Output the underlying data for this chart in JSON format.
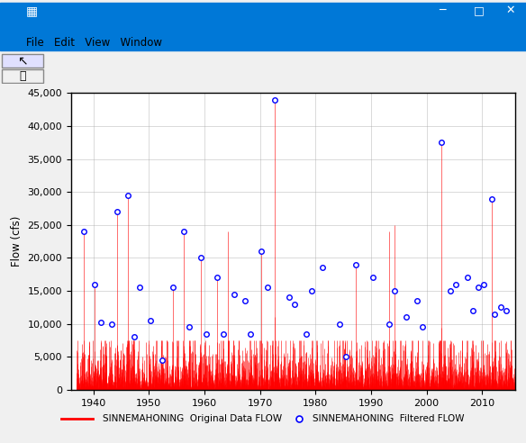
{
  "title": "",
  "xlabel": "",
  "ylabel": "Flow (cfs)",
  "xlim": [
    1936,
    2016
  ],
  "ylim": [
    0,
    45000
  ],
  "yticks": [
    0,
    5000,
    10000,
    15000,
    20000,
    25000,
    30000,
    35000,
    40000,
    45000
  ],
  "xticks": [
    1940,
    1950,
    1960,
    1970,
    1980,
    1990,
    2000,
    2010
  ],
  "original_label": "SINNEMAHONING  Original Data FLOW",
  "filtered_label": "SINNEMAHONING  Filtered FLOW",
  "bar_color": "#FF0000",
  "marker_color": "#0000FF",
  "window_bg": "#F0F0F0",
  "plot_bg_color": "#FFFFFF",
  "grid_color": "#AAAAAA",
  "seed": 42,
  "filtered_peaks": {
    "1938.3": 24000,
    "1940.3": 16000,
    "1941.4": 10200,
    "1943.3": 10000,
    "1944.3": 27000,
    "1946.3": 29500,
    "1947.4": 8000,
    "1948.3": 15500,
    "1950.3": 10500,
    "1952.4": 4500,
    "1954.3": 15500,
    "1956.3": 24000,
    "1957.3": 9500,
    "1959.3": 20000,
    "1960.3": 8500,
    "1962.3": 17000,
    "1963.4": 8500,
    "1965.3": 14500,
    "1967.3": 13500,
    "1968.3": 8500,
    "1970.3": 21000,
    "1971.3": 15500,
    "1972.6": 44000,
    "1975.3": 14000,
    "1976.3": 13000,
    "1978.3": 8500,
    "1979.3": 15000,
    "1981.3": 18500,
    "1984.3": 10000,
    "1985.4": 5000,
    "1987.3": 19000,
    "1990.3": 17000,
    "1993.3": 10000,
    "1994.3": 15000,
    "1996.3": 11000,
    "1998.3": 13500,
    "1999.3": 9500,
    "2002.7": 37500,
    "2004.3": 15000,
    "2005.3": 16000,
    "2007.3": 17000,
    "2008.3": 12000,
    "2009.3": 15500,
    "2010.3": 16000,
    "2011.8": 29000,
    "2012.3": 11500,
    "2013.3": 12500,
    "2014.3": 12000
  },
  "spike_events": {
    "1938.3": 24000,
    "1940.3": 16000,
    "1944.3": 27000,
    "1946.3": 29500,
    "1954.3": 15500,
    "1956.3": 24000,
    "1959.3": 20000,
    "1962.3": 17000,
    "1964.3": 24000,
    "1970.3": 21000,
    "1972.6": 44000,
    "1987.3": 19000,
    "1993.3": 24000,
    "1994.3": 25000,
    "2002.7": 37500,
    "2011.8": 29000
  }
}
